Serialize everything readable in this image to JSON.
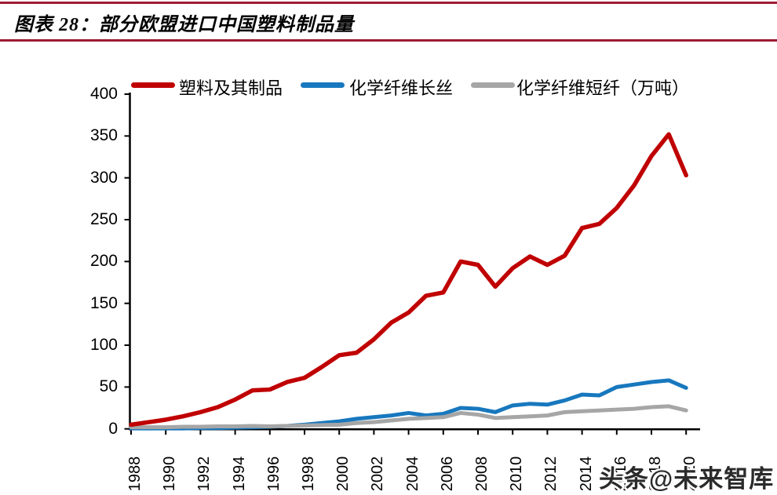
{
  "header": {
    "title": "图表 28：部分欧盟进口中国塑料制品量"
  },
  "watermark": "头条@未来智库",
  "colors": {
    "red": "#C00000",
    "blue": "#1878BE",
    "gray": "#A6A6A6",
    "rule": "#9E1B32",
    "axis": "#000000"
  },
  "chart_data": {
    "type": "line",
    "title": "部分欧盟进口中国塑料制品量",
    "unit_note": "万吨",
    "grid": false,
    "legend_position": "top",
    "ylim": [
      0,
      400
    ],
    "yticks": [
      0,
      50,
      100,
      150,
      200,
      250,
      300,
      350,
      400
    ],
    "xticks": [
      1988,
      1990,
      1992,
      1994,
      1996,
      1998,
      2000,
      2002,
      2004,
      2006,
      2008,
      2010,
      2012,
      2014,
      2016,
      2018,
      2020
    ],
    "x": [
      1988,
      1989,
      1990,
      1991,
      1992,
      1993,
      1994,
      1995,
      1996,
      1997,
      1998,
      1999,
      2000,
      2001,
      2002,
      2003,
      2004,
      2005,
      2006,
      2007,
      2008,
      2009,
      2010,
      2011,
      2012,
      2013,
      2014,
      2015,
      2016,
      2017,
      2018,
      2019,
      2020
    ],
    "series": [
      {
        "name": "塑料及其制品",
        "color_key": "red",
        "values": [
          5,
          8,
          11,
          15,
          20,
          26,
          35,
          46,
          47,
          56,
          61,
          74,
          88,
          91,
          107,
          127,
          139,
          159,
          163,
          200,
          196,
          170,
          192,
          206,
          196,
          207,
          240,
          245,
          264,
          291,
          326,
          352,
          303
        ]
      },
      {
        "name": "化学纤维长丝",
        "color_key": "blue",
        "values": [
          0.5,
          0.5,
          0.5,
          0.5,
          1,
          1,
          1.5,
          2,
          2.5,
          3.5,
          5,
          7,
          9,
          12,
          14,
          16,
          19,
          16,
          18,
          25,
          24,
          20,
          28,
          30,
          29,
          34,
          41,
          40,
          50,
          53,
          56,
          58,
          49
        ]
      },
      {
        "name": "化学纤维短纤（万吨）",
        "color_key": "gray",
        "values": [
          2,
          2,
          2,
          2.5,
          2.5,
          3,
          3,
          3.5,
          3,
          3.5,
          4,
          4.5,
          5,
          7,
          8,
          10,
          12,
          13,
          14,
          19,
          17,
          13,
          14,
          15,
          16,
          20,
          21,
          22,
          23,
          24,
          26,
          27,
          22
        ]
      }
    ]
  }
}
